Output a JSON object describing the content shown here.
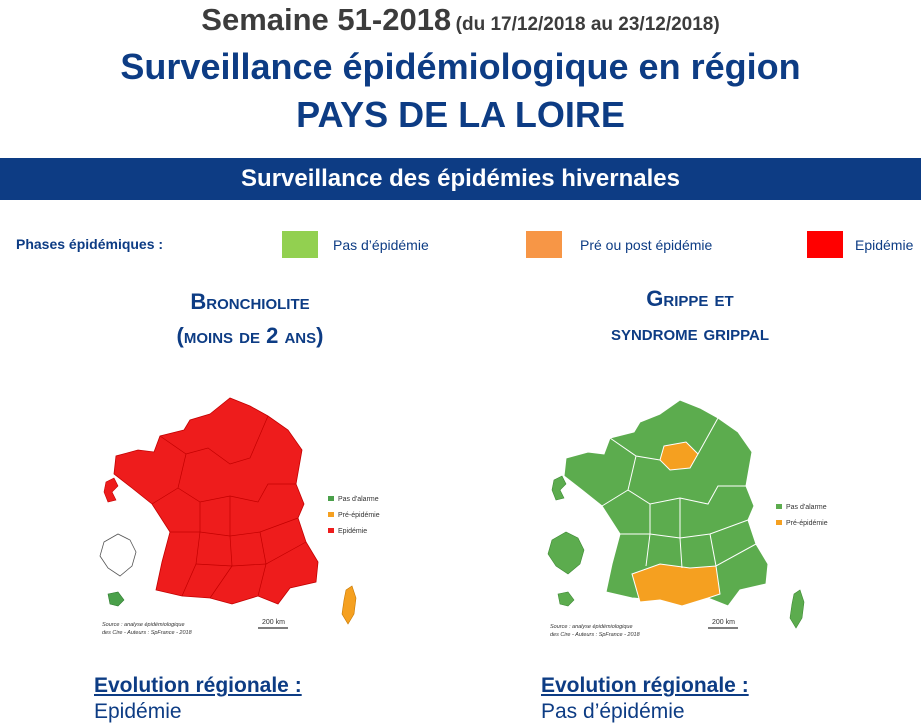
{
  "header": {
    "week": "Semaine 51-2018",
    "dates": "(du 17/12/2018 au 23/12/2018)",
    "title_line1": "Surveillance épidémiologique en région",
    "title_line2": "PAYS DE LA LOIRE"
  },
  "banner": {
    "text": "Surveillance des épidémies hivernales"
  },
  "legend": {
    "label": "Phases épidémiques :",
    "items": [
      {
        "label": "Pas d’épidémie",
        "color": "#92d050"
      },
      {
        "label": "Pré ou post épidémie",
        "color": "#f79646"
      },
      {
        "label": "Epidémie",
        "color": "#ff0000"
      }
    ]
  },
  "sections": [
    {
      "title_line1": "Bronchiolite",
      "title_line2": "(moins de 2 ans)",
      "map": {
        "legend": [
          "Pas d'alarme",
          "Pré-épidémie",
          "Epidémie"
        ],
        "legend_colors": [
          "#4aa04a",
          "#f5a020",
          "#ee1c1c"
        ],
        "scale": "200 km",
        "source_line1": "Source : analyse épidémiologique",
        "source_line2": "des Cire - Auteurs : SpFrance - 2018"
      },
      "evolution_label": "Evolution régionale :",
      "evolution_value": "Epidémie"
    },
    {
      "title_line1": "Grippe et",
      "title_line2": "syndrome grippal",
      "map": {
        "legend": [
          "Pas d'alarme",
          "Pré-épidémie"
        ],
        "legend_colors": [
          "#5cac4e",
          "#f5a020"
        ],
        "scale": "200 km",
        "source_line1": "Source : analyse épidémiologique",
        "source_line2": "des Cire - Auteurs : SpFrance - 2018"
      },
      "evolution_label": "Evolution régionale :",
      "evolution_value": "Pas d’épidémie"
    }
  ]
}
